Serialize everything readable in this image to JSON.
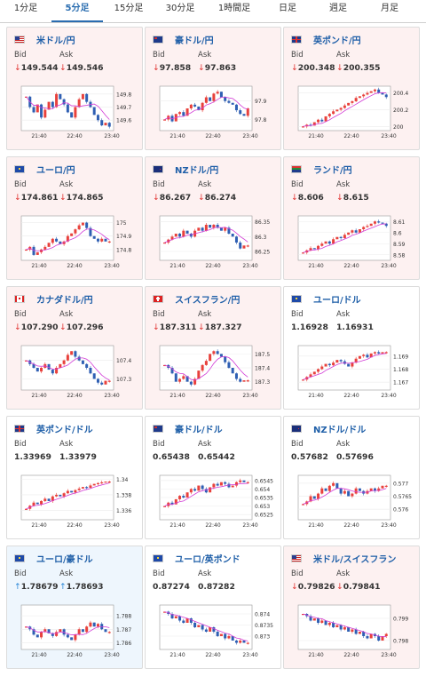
{
  "tabs": [
    {
      "label": "1分足",
      "active": false
    },
    {
      "label": "5分足",
      "active": true
    },
    {
      "label": "15分足",
      "active": false
    },
    {
      "label": "30分足",
      "active": false
    },
    {
      "label": "1時間足",
      "active": false
    },
    {
      "label": "日足",
      "active": false
    },
    {
      "label": "週足",
      "active": false
    },
    {
      "label": "月足",
      "active": false
    }
  ],
  "labels": {
    "bid": "Bid",
    "ask": "Ask"
  },
  "colors": {
    "up_candle": "#e8413c",
    "down_candle": "#2f5fb3",
    "ma": "#d23cd6",
    "arrow_down": "#e0312f",
    "arrow_up": "#2f8ad8",
    "link": "#1f5fa8"
  },
  "cards": [
    {
      "pair": "米ドル/円",
      "flag": "us-jp",
      "trend": "down",
      "bid": "149.544",
      "ask": "149.546",
      "chart_data": {
        "type": "candlestick",
        "x_ticks": [
          "21:40",
          "22:40",
          "23:40"
        ],
        "y_ticks": [
          "149.8",
          "149.7",
          "149.6"
        ],
        "ylim": [
          149.52,
          149.86
        ],
        "series": [
          149.78,
          149.7,
          149.66,
          149.72,
          149.62,
          149.68,
          149.74,
          149.7,
          149.8,
          149.76,
          149.72,
          149.66,
          149.62,
          149.7,
          149.76,
          149.8,
          149.74,
          149.7,
          149.64,
          149.6,
          149.56,
          149.58,
          149.55
        ]
      }
    },
    {
      "pair": "豪ドル/円",
      "flag": "au-jp",
      "trend": "down",
      "bid": "97.858",
      "ask": "97.863",
      "chart_data": {
        "type": "candlestick",
        "x_ticks": [
          "21:40",
          "22:40",
          "23:40"
        ],
        "y_ticks": [
          "97.9",
          "97.8"
        ],
        "ylim": [
          97.74,
          97.98
        ],
        "series": [
          97.8,
          97.82,
          97.79,
          97.83,
          97.84,
          97.82,
          97.86,
          97.88,
          97.87,
          97.85,
          97.89,
          97.92,
          97.9,
          97.94,
          97.95,
          97.92,
          97.9,
          97.89,
          97.88,
          97.85,
          97.83,
          97.82,
          97.86
        ]
      }
    },
    {
      "pair": "英ポンド/円",
      "flag": "gb-jp",
      "trend": "down",
      "bid": "200.348",
      "ask": "200.355",
      "chart_data": {
        "type": "candlestick",
        "x_ticks": [
          "21:40",
          "22:40",
          "23:40"
        ],
        "y_ticks": [
          "200.4",
          "200.2",
          "200"
        ],
        "ylim": [
          199.95,
          200.48
        ],
        "series": [
          200.0,
          200.02,
          200.01,
          200.05,
          200.08,
          200.06,
          200.12,
          200.15,
          200.18,
          200.2,
          200.22,
          200.25,
          200.28,
          200.3,
          200.34,
          200.36,
          200.38,
          200.4,
          200.42,
          200.44,
          200.4,
          200.38,
          200.35
        ]
      }
    },
    {
      "pair": "ユーロ/円",
      "flag": "eu-jp",
      "trend": "down",
      "bid": "174.861",
      "ask": "174.865",
      "chart_data": {
        "type": "candlestick",
        "x_ticks": [
          "21:40",
          "22:40",
          "23:40"
        ],
        "y_ticks": [
          "175",
          "174.9",
          "174.8"
        ],
        "ylim": [
          174.72,
          175.05
        ],
        "series": [
          174.8,
          174.82,
          174.76,
          174.78,
          174.8,
          174.82,
          174.85,
          174.88,
          174.86,
          174.84,
          174.86,
          174.9,
          174.92,
          174.95,
          174.98,
          175.0,
          174.96,
          174.9,
          174.88,
          174.86,
          174.88,
          174.86,
          174.86
        ]
      }
    },
    {
      "pair": "NZドル/円",
      "flag": "nz-jp",
      "trend": "down",
      "bid": "86.267",
      "ask": "86.274",
      "chart_data": {
        "type": "candlestick",
        "x_ticks": [
          "21:40",
          "22:40",
          "23:40"
        ],
        "y_ticks": [
          "86.35",
          "86.3",
          "86.25"
        ],
        "ylim": [
          86.22,
          86.37
        ],
        "series": [
          86.28,
          86.29,
          86.3,
          86.31,
          86.3,
          86.32,
          86.31,
          86.3,
          86.32,
          86.33,
          86.32,
          86.34,
          86.33,
          86.34,
          86.33,
          86.32,
          86.33,
          86.31,
          86.3,
          86.28,
          86.26,
          86.27,
          86.27
        ]
      }
    },
    {
      "pair": "ランド/円",
      "flag": "za-jp",
      "trend": "down",
      "bid": "8.606",
      "ask": "8.615",
      "chart_data": {
        "type": "candlestick",
        "x_ticks": [
          "21:40",
          "22:40",
          "23:40"
        ],
        "y_ticks": [
          "8.61",
          "8.6",
          "8.59",
          "8.58"
        ],
        "ylim": [
          8.575,
          8.615
        ],
        "series": [
          8.582,
          8.584,
          8.586,
          8.585,
          8.588,
          8.59,
          8.592,
          8.59,
          8.594,
          8.596,
          8.595,
          8.598,
          8.6,
          8.602,
          8.6,
          8.603,
          8.605,
          8.606,
          8.608,
          8.61,
          8.609,
          8.608,
          8.606
        ]
      }
    },
    {
      "pair": "カナダドル/円",
      "flag": "ca-jp",
      "trend": "down",
      "bid": "107.290",
      "ask": "107.296",
      "chart_data": {
        "type": "candlestick",
        "x_ticks": [
          "21:40",
          "22:40",
          "23:40"
        ],
        "y_ticks": [
          "107.4",
          "107.3"
        ],
        "ylim": [
          107.24,
          107.48
        ],
        "series": [
          107.4,
          107.38,
          107.36,
          107.34,
          107.36,
          107.38,
          107.35,
          107.33,
          107.36,
          107.38,
          107.4,
          107.43,
          107.45,
          107.42,
          107.4,
          107.38,
          107.36,
          107.33,
          107.3,
          107.28,
          107.27,
          107.29,
          107.29
        ]
      }
    },
    {
      "pair": "スイスフラン/円",
      "flag": "ch-jp",
      "trend": "down",
      "bid": "187.311",
      "ask": "187.327",
      "chart_data": {
        "type": "candlestick",
        "x_ticks": [
          "21:40",
          "22:40",
          "23:40"
        ],
        "y_ticks": [
          "187.5",
          "187.4",
          "187.3"
        ],
        "ylim": [
          187.24,
          187.56
        ],
        "series": [
          187.42,
          187.4,
          187.36,
          187.3,
          187.32,
          187.34,
          187.3,
          187.28,
          187.32,
          187.38,
          187.42,
          187.45,
          187.5,
          187.52,
          187.5,
          187.48,
          187.44,
          187.4,
          187.36,
          187.32,
          187.3,
          187.31,
          187.31
        ]
      }
    },
    {
      "pair": "ユーロ/ドル",
      "flag": "eu-us",
      "trend": "flat",
      "bid": "1.16928",
      "ask": "1.16931",
      "chart_data": {
        "type": "candlestick",
        "x_ticks": [
          "21:40",
          "22:40",
          "23:40"
        ],
        "y_ticks": [
          "1.169",
          "1.168",
          "1.167"
        ],
        "ylim": [
          1.1664,
          1.1698
        ],
        "series": [
          1.1672,
          1.1674,
          1.1676,
          1.1678,
          1.168,
          1.1682,
          1.1684,
          1.1683,
          1.1685,
          1.1687,
          1.1686,
          1.1684,
          1.1682,
          1.1685,
          1.1688,
          1.169,
          1.1691,
          1.1689,
          1.1692,
          1.1693,
          1.1692,
          1.1693,
          1.1693
        ]
      }
    },
    {
      "pair": "英ポンド/ドル",
      "flag": "gb-us",
      "trend": "flat",
      "bid": "1.33969",
      "ask": "1.33979",
      "chart_data": {
        "type": "candlestick",
        "x_ticks": [
          "21:40",
          "22:40",
          "23:40"
        ],
        "y_ticks": [
          "1.34",
          "1.338",
          "1.336"
        ],
        "ylim": [
          1.3348,
          1.3405
        ],
        "series": [
          1.3362,
          1.3366,
          1.337,
          1.3368,
          1.3372,
          1.3375,
          1.3372,
          1.3378,
          1.338,
          1.3378,
          1.3382,
          1.3385,
          1.3383,
          1.3386,
          1.3388,
          1.339,
          1.3389,
          1.3392,
          1.3394,
          1.3395,
          1.3396,
          1.3397,
          1.3397
        ]
      }
    },
    {
      "pair": "豪ドル/ドル",
      "flag": "au-us",
      "trend": "flat",
      "bid": "0.65438",
      "ask": "0.65442",
      "chart_data": {
        "type": "candlestick",
        "x_ticks": [
          "21:40",
          "22:40",
          "23:40"
        ],
        "y_ticks": [
          "0.6545",
          "0.654",
          "0.6535",
          "0.653",
          "0.6525"
        ],
        "ylim": [
          0.6522,
          0.6548
        ],
        "series": [
          0.653,
          0.6532,
          0.6531,
          0.6534,
          0.6536,
          0.6535,
          0.6538,
          0.654,
          0.6539,
          0.6542,
          0.654,
          0.6538,
          0.6541,
          0.6543,
          0.6542,
          0.6544,
          0.6543,
          0.6541,
          0.6542,
          0.6544,
          0.6545,
          0.6544,
          0.6544
        ]
      }
    },
    {
      "pair": "NZドル/ドル",
      "flag": "nz-us",
      "trend": "flat",
      "bid": "0.57682",
      "ask": "0.57696",
      "chart_data": {
        "type": "candlestick",
        "x_ticks": [
          "21:40",
          "22:40",
          "23:40"
        ],
        "y_ticks": [
          "0.577",
          "0.5765",
          "0.576"
        ],
        "ylim": [
          0.5756,
          0.5773
        ],
        "series": [
          0.5762,
          0.5763,
          0.5765,
          0.5764,
          0.5766,
          0.5768,
          0.5767,
          0.5769,
          0.577,
          0.5768,
          0.5766,
          0.5767,
          0.5765,
          0.5766,
          0.5768,
          0.5767,
          0.5766,
          0.5767,
          0.5768,
          0.5767,
          0.5768,
          0.5769,
          0.5769
        ]
      }
    },
    {
      "pair": "ユーロ/豪ドル",
      "flag": "eu-au",
      "trend": "up",
      "bid": "1.78679",
      "ask": "1.78693",
      "chart_data": {
        "type": "candlestick",
        "x_ticks": [
          "21:40",
          "22:40",
          "23:40"
        ],
        "y_ticks": [
          "1.788",
          "1.787",
          "1.786"
        ],
        "ylim": [
          1.7855,
          1.7888
        ],
        "series": [
          1.7872,
          1.787,
          1.7866,
          1.7864,
          1.7868,
          1.787,
          1.7867,
          1.7865,
          1.7868,
          1.787,
          1.7866,
          1.7864,
          1.7862,
          1.7866,
          1.787,
          1.7868,
          1.7872,
          1.7875,
          1.7872,
          1.7874,
          1.787,
          1.7868,
          1.7868
        ]
      }
    },
    {
      "pair": "ユーロ/英ポンド",
      "flag": "eu-gb",
      "trend": "flat",
      "bid": "0.87274",
      "ask": "0.87282",
      "chart_data": {
        "type": "candlestick",
        "x_ticks": [
          "21:40",
          "22:40",
          "23:40"
        ],
        "y_ticks": [
          "0.874",
          "0.8735",
          "0.873"
        ],
        "ylim": [
          0.8724,
          0.8744
        ],
        "series": [
          0.8741,
          0.874,
          0.8738,
          0.8739,
          0.8737,
          0.8736,
          0.8738,
          0.8736,
          0.8734,
          0.8735,
          0.8733,
          0.8732,
          0.8734,
          0.8732,
          0.873,
          0.8731,
          0.8729,
          0.873,
          0.8728,
          0.8727,
          0.8728,
          0.8727,
          0.8727
        ]
      }
    },
    {
      "pair": "米ドル/スイスフラン",
      "flag": "us-ch",
      "trend": "down",
      "bid": "0.79826",
      "ask": "0.79841",
      "chart_data": {
        "type": "candlestick",
        "x_ticks": [
          "21:40",
          "22:40",
          "23:40"
        ],
        "y_ticks": [
          "0.799",
          "0.798"
        ],
        "ylim": [
          0.7976,
          0.7996
        ],
        "series": [
          0.7992,
          0.7991,
          0.7989,
          0.799,
          0.7988,
          0.7989,
          0.7987,
          0.7988,
          0.7986,
          0.7987,
          0.7985,
          0.7986,
          0.7984,
          0.7985,
          0.7983,
          0.7984,
          0.7982,
          0.7981,
          0.7983,
          0.7982,
          0.798,
          0.7982,
          0.7983
        ]
      }
    }
  ]
}
